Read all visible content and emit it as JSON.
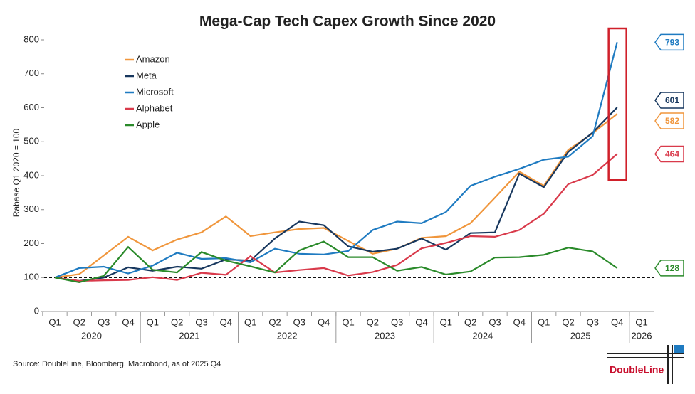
{
  "chart_data": {
    "type": "line",
    "title": "Mega-Cap Tech Capex Growth Since 2020",
    "y_label": "Rabase Q1 2020 = 100",
    "source": "Source: DoubleLine, Bloomberg, Macrobond, as of 2025 Q4",
    "logo": "DoubleLine",
    "categories": [
      "Q1",
      "Q2",
      "Q3",
      "Q4",
      "Q1",
      "Q2",
      "Q3",
      "Q4",
      "Q1",
      "Q2",
      "Q3",
      "Q4",
      "Q1",
      "Q2",
      "Q3",
      "Q4",
      "Q1",
      "Q2",
      "Q3",
      "Q4",
      "Q1",
      "Q2",
      "Q3",
      "Q4",
      "Q1"
    ],
    "years": [
      "2020",
      "2021",
      "2022",
      "2023",
      "2024",
      "2025",
      "2026"
    ],
    "reference_line": 100,
    "ylim": [
      0,
      800
    ],
    "yticks": [
      0,
      100,
      200,
      300,
      400,
      500,
      600,
      700,
      800
    ],
    "legend": "upper left",
    "series": [
      {
        "name": "Amazon",
        "color": "#f0963c",
        "values": [
          100,
          110,
          165,
          220,
          180,
          212,
          233,
          280,
          222,
          233,
          243,
          246,
          208,
          170,
          185,
          217,
          222,
          260,
          335,
          412,
          370,
          476,
          525,
          582,
          null
        ]
      },
      {
        "name": "Meta",
        "color": "#17375e",
        "values": [
          100,
          90,
          100,
          130,
          120,
          132,
          126,
          153,
          150,
          215,
          265,
          254,
          192,
          176,
          185,
          215,
          182,
          231,
          233,
          406,
          366,
          470,
          527,
          601,
          null
        ]
      },
      {
        "name": "Microsoft",
        "color": "#1f7bc1",
        "values": [
          100,
          128,
          132,
          112,
          135,
          173,
          155,
          157,
          145,
          185,
          170,
          168,
          178,
          240,
          265,
          260,
          293,
          370,
          397,
          420,
          447,
          456,
          516,
          793,
          null
        ]
      },
      {
        "name": "Alphabet",
        "color": "#d93a4b",
        "values": [
          100,
          90,
          92,
          93,
          101,
          93,
          114,
          108,
          163,
          115,
          122,
          128,
          106,
          116,
          137,
          186,
          202,
          222,
          220,
          240,
          288,
          375,
          402,
          464,
          null
        ]
      },
      {
        "name": "Apple",
        "color": "#2a8a2a",
        "values": [
          100,
          86,
          105,
          190,
          123,
          115,
          175,
          150,
          133,
          115,
          180,
          206,
          160,
          160,
          120,
          131,
          109,
          118,
          159,
          160,
          167,
          188,
          177,
          128,
          null
        ]
      }
    ]
  }
}
